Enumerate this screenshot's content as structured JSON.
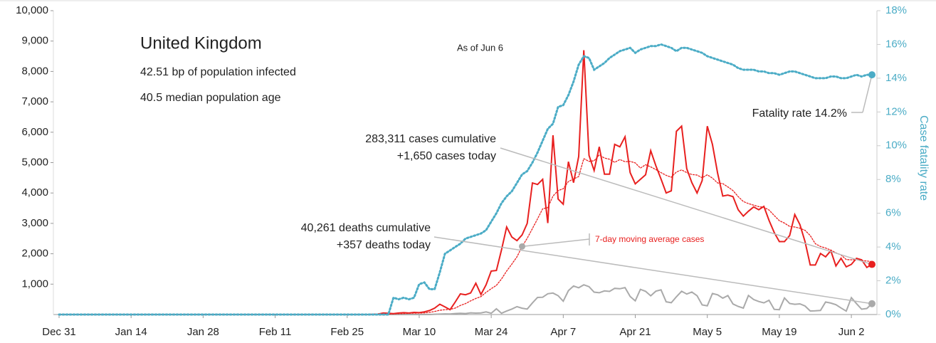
{
  "chart_data": {
    "type": "line",
    "title": "United Kingdom",
    "subtitles": [
      "42.51 bp of population infected",
      "40.5 median population age"
    ],
    "note": "As of Jun 6",
    "y2_label": "Case fatality rate",
    "annotations": {
      "cases": [
        "283,311 cases cumulative",
        "+1,650 cases today"
      ],
      "deaths": [
        "40,261 deaths cumulative",
        "+357 deaths today"
      ],
      "fatality": "Fatality rate 14.2%",
      "average": "7-day moving average cases"
    },
    "categories": [
      "Dec 31",
      null,
      null,
      null,
      null,
      null,
      null,
      null,
      null,
      null,
      null,
      null,
      null,
      null,
      "Jan 14",
      null,
      null,
      null,
      null,
      null,
      null,
      null,
      null,
      null,
      null,
      null,
      null,
      null,
      "Jan 28",
      null,
      null,
      null,
      null,
      null,
      null,
      null,
      null,
      null,
      null,
      null,
      null,
      null,
      "Feb 11",
      null,
      null,
      null,
      null,
      null,
      null,
      null,
      null,
      null,
      null,
      null,
      null,
      null,
      "Feb 25",
      null,
      null,
      null,
      null,
      null,
      null,
      null,
      null,
      null,
      null,
      null,
      null,
      null,
      "Mar 10",
      null,
      null,
      null,
      null,
      null,
      null,
      null,
      null,
      null,
      null,
      null,
      null,
      null,
      "Mar 24",
      null,
      null,
      null,
      null,
      null,
      null,
      null,
      null,
      null,
      null,
      null,
      null,
      null,
      "Apr 7",
      null,
      null,
      null,
      null,
      null,
      null,
      null,
      null,
      null,
      null,
      null,
      null,
      null,
      "Apr 21",
      null,
      null,
      null,
      null,
      null,
      null,
      null,
      null,
      null,
      null,
      null,
      null,
      null,
      "May 5",
      null,
      null,
      null,
      null,
      null,
      null,
      null,
      null,
      null,
      null,
      null,
      null,
      null,
      "May 19",
      null,
      null,
      null,
      null,
      null,
      null,
      null,
      null,
      null,
      null,
      null,
      null,
      null,
      "Jun 2",
      null,
      null,
      null,
      null
    ],
    "series": [
      {
        "name": "Daily deaths",
        "color": "#aaaaaa",
        "style": "solid",
        "axis": "y",
        "values": [
          0,
          0,
          0,
          0,
          0,
          0,
          0,
          0,
          0,
          0,
          0,
          0,
          0,
          0,
          0,
          0,
          0,
          0,
          0,
          0,
          0,
          0,
          0,
          0,
          0,
          0,
          0,
          0,
          0,
          0,
          0,
          0,
          0,
          0,
          0,
          0,
          0,
          0,
          0,
          0,
          0,
          0,
          0,
          0,
          0,
          0,
          0,
          0,
          0,
          0,
          0,
          0,
          0,
          0,
          0,
          0,
          0,
          0,
          0,
          0,
          0,
          0,
          0,
          0,
          0,
          1,
          1,
          1,
          2,
          1,
          1,
          2,
          1,
          10,
          14,
          20,
          16,
          33,
          40,
          33,
          56,
          48,
          54,
          87,
          41,
          187,
          43,
          115,
          181,
          260,
          209,
          180,
          381,
          563,
          569,
          684,
          708,
          621,
          439,
          786,
          938,
          881,
          980,
          917,
          737,
          717,
          778,
          761,
          861,
          847,
          888,
          596,
          449,
          828,
          763,
          616,
          768,
          813,
          420,
          388,
          586,
          765,
          674,
          739,
          621,
          315,
          288,
          693,
          649,
          539,
          626,
          346,
          268,
          210,
          627,
          494,
          428,
          384,
          468,
          170,
          160,
          545,
          363,
          338,
          351,
          282,
          118,
          121,
          134,
          412,
          377,
          324,
          215,
          113,
          556,
          359,
          176,
          200,
          357
        ]
      },
      {
        "name": "7-day moving average cases",
        "color": "#e8201f",
        "style": "dotted",
        "axis": "y",
        "values": [
          0,
          0,
          0,
          0,
          0,
          0,
          0,
          0,
          0,
          0,
          0,
          0,
          0,
          0,
          0,
          0,
          0,
          0,
          0,
          0,
          0,
          0,
          0,
          0,
          0,
          0,
          0,
          0,
          0,
          0,
          0,
          0,
          0,
          0,
          0,
          0,
          0,
          0,
          0,
          0,
          0,
          0,
          0,
          0,
          0,
          0,
          0,
          0,
          0,
          0,
          0,
          0,
          0,
          0,
          0,
          0,
          0,
          0,
          0,
          0,
          0,
          5,
          7,
          12,
          17,
          21,
          27,
          33,
          40,
          45,
          48,
          55,
          70,
          100,
          140,
          160,
          170,
          210,
          300,
          360,
          450,
          530,
          590,
          730,
          850,
          960,
          1170,
          1430,
          1660,
          1900,
          2240,
          2510,
          2830,
          3150,
          3480,
          3520,
          3900,
          4080,
          4140,
          4380,
          4460,
          4540,
          5130,
          5040,
          5060,
          5250,
          5150,
          5110,
          5010,
          5100,
          5030,
          5040,
          4990,
          4820,
          4930,
          4860,
          4770,
          4670,
          4580,
          4520,
          4690,
          4760,
          4670,
          4610,
          4590,
          4500,
          4600,
          4490,
          4330,
          4310,
          4200,
          4080,
          3880,
          3720,
          3650,
          3600,
          3550,
          3530,
          3440,
          3260,
          3090,
          3010,
          2900,
          2880,
          2840,
          2770,
          2600,
          2330,
          2240,
          2190,
          2120,
          2030,
          1960,
          1810,
          1800,
          1810,
          1780,
          1760,
          1740
        ]
      },
      {
        "name": "Daily cases",
        "color": "#e8201f",
        "style": "solid",
        "axis": "y",
        "values": [
          0,
          0,
          0,
          0,
          0,
          0,
          0,
          0,
          0,
          0,
          0,
          0,
          0,
          0,
          0,
          0,
          0,
          0,
          0,
          0,
          0,
          0,
          0,
          0,
          0,
          0,
          0,
          0,
          0,
          0,
          0,
          0,
          0,
          0,
          0,
          0,
          0,
          0,
          0,
          0,
          0,
          0,
          0,
          0,
          0,
          0,
          0,
          0,
          0,
          0,
          0,
          0,
          0,
          0,
          0,
          0,
          0,
          0,
          0,
          0,
          0,
          10,
          15,
          50,
          40,
          30,
          50,
          60,
          50,
          70,
          60,
          90,
          130,
          210,
          340,
          250,
          160,
          410,
          680,
          650,
          710,
          1030,
          660,
          980,
          1430,
          1450,
          2130,
          2880,
          2550,
          2430,
          2620,
          3000,
          4330,
          4280,
          4450,
          3010,
          5900,
          3800,
          3630,
          5030,
          4340,
          5200,
          8700,
          5240,
          4740,
          5520,
          4620,
          4620,
          5600,
          5520,
          5850,
          4670,
          4300,
          4450,
          4600,
          5390,
          4900,
          4460,
          4000,
          4070,
          6030,
          6200,
          4800,
          4340,
          4000,
          4410,
          6200,
          5600,
          4650,
          3900,
          3930,
          3880,
          3450,
          3240,
          3400,
          3540,
          3450,
          3560,
          3100,
          2700,
          2400,
          2400,
          2600,
          3290,
          2960,
          2400,
          1630,
          1630,
          2010,
          1900,
          2100,
          1600,
          1850,
          1570,
          1650,
          1850,
          1800,
          1550,
          1650
        ]
      },
      {
        "name": "Case fatality rate",
        "color": "#4bacc6",
        "style": "dotted",
        "axis": "y2",
        "values": [
          0,
          0,
          0,
          0,
          0,
          0,
          0,
          0,
          0,
          0,
          0,
          0,
          0,
          0,
          0,
          0,
          0,
          0,
          0,
          0,
          0,
          0,
          0,
          0,
          0,
          0,
          0,
          0,
          0,
          0,
          0,
          0,
          0,
          0,
          0,
          0,
          0,
          0,
          0,
          0,
          0,
          0,
          0,
          0,
          0,
          0,
          0,
          0,
          0,
          0,
          0,
          0,
          0,
          0,
          0,
          0,
          0,
          0,
          0,
          0,
          0,
          0,
          0,
          0,
          0,
          1.0,
          0.9,
          1.0,
          0.9,
          1.0,
          1.8,
          1.9,
          1.5,
          1.5,
          2.5,
          3.6,
          3.8,
          4.0,
          4.2,
          4.5,
          4.6,
          4.7,
          4.8,
          5.0,
          5.5,
          6.0,
          6.6,
          7.0,
          7.3,
          7.8,
          8.3,
          8.5,
          9.0,
          9.6,
          10.3,
          11.0,
          11.3,
          12.3,
          12.4,
          13.0,
          13.8,
          14.8,
          15.3,
          15.2,
          14.5,
          14.7,
          14.9,
          15.2,
          15.4,
          15.6,
          15.7,
          15.8,
          15.5,
          15.7,
          15.8,
          15.9,
          15.9,
          16.0,
          15.9,
          15.8,
          15.6,
          15.8,
          15.8,
          15.7,
          15.6,
          15.5,
          15.3,
          15.2,
          15.1,
          15.0,
          14.9,
          14.8,
          14.6,
          14.5,
          14.5,
          14.5,
          14.4,
          14.4,
          14.3,
          14.3,
          14.2,
          14.3,
          14.4,
          14.4,
          14.3,
          14.2,
          14.1,
          14.0,
          14.0,
          14.0,
          14.1,
          14.1,
          14.0,
          14.0,
          14.1,
          14.2,
          14.1,
          14.2,
          14.2
        ]
      }
    ],
    "ylim": [
      0,
      10000
    ],
    "yticks": [
      {
        "value": 1000,
        "label": "1,000"
      },
      {
        "value": 2000,
        "label": "2,000"
      },
      {
        "value": 3000,
        "label": "3,000"
      },
      {
        "value": 4000,
        "label": "4,000"
      },
      {
        "value": 5000,
        "label": "5,000"
      },
      {
        "value": 6000,
        "label": "6,000"
      },
      {
        "value": 7000,
        "label": "7,000"
      },
      {
        "value": 8000,
        "label": "8,000"
      },
      {
        "value": 9000,
        "label": "9,000"
      },
      {
        "value": 10000,
        "label": "10,000"
      }
    ],
    "y2lim": [
      0,
      18
    ],
    "y2ticks": [
      {
        "value": 0,
        "label": "0%"
      },
      {
        "value": 2,
        "label": "2%"
      },
      {
        "value": 4,
        "label": "4%"
      },
      {
        "value": 6,
        "label": "6%"
      },
      {
        "value": 8,
        "label": "8%"
      },
      {
        "value": 10,
        "label": "10%"
      },
      {
        "value": 12,
        "label": "12%"
      },
      {
        "value": 14,
        "label": "14%"
      },
      {
        "value": 16,
        "label": "16%"
      },
      {
        "value": 18,
        "label": "18%"
      }
    ],
    "y2color": "#4bacc6",
    "grid": false
  }
}
